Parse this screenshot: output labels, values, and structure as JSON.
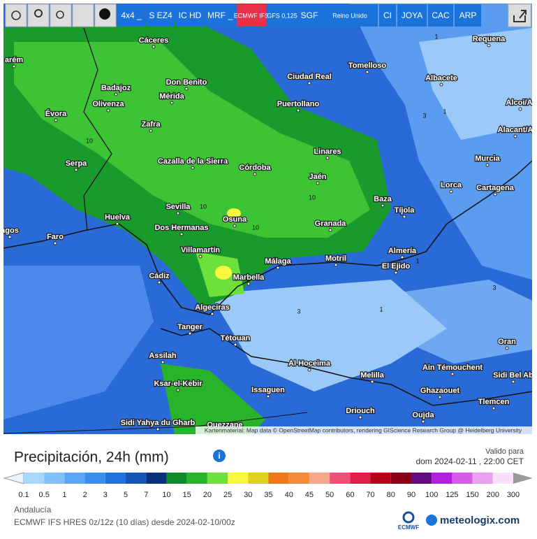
{
  "toolbar": {
    "buttons": [
      "4x4 _",
      "S EZ4",
      "IC HD",
      "MRF _",
      "ECMWF IFS",
      "GFS 0,125",
      "SGF",
      "Reino Unido",
      "CI",
      "JOYA",
      "CAC",
      "ARP"
    ],
    "active": "ECMWF IFS"
  },
  "map": {
    "cities": [
      "Cáceres",
      "arém",
      "Badajoz",
      "Don Benito",
      "Mérida",
      "Ciudad Real",
      "Tomelloso",
      "Requena",
      "Albacete",
      "Évora",
      "Olivenza",
      "Puertollano",
      "Zafra",
      "Alcoi/Al",
      "Alacant/A",
      "Linares",
      "Serpa",
      "Cazalla de la Sierra",
      "Córdoba",
      "Jaén",
      "Murcia",
      "Lorca",
      "Cartagena",
      "Baza",
      "Sevilla",
      "Osuna",
      "Tíjola",
      "Huelva",
      "Dos Hermanas",
      "Granada",
      "Faro",
      "agos",
      "Villamartín",
      "Almería",
      "Málaga",
      "Motril",
      "El Ejido",
      "Cádiz",
      "Marbella",
      "Algeciras",
      "Oran",
      "Tanger",
      "Tétouan",
      "Assilah",
      "Al Hoceima",
      "Ain Témouchent",
      "Melilla",
      "Sidi Bel Ab",
      "Ksar-el-Kebir",
      "Issaguen",
      "Ghazaouet",
      "Tlemcen",
      "Driouch",
      "Sidi Yahya du Gharb",
      "Oujda",
      "Ouezzane"
    ],
    "contour_labels": [
      "10",
      "10",
      "10",
      "10",
      "10",
      "3",
      "3",
      "1",
      "1",
      "1",
      "3",
      "1"
    ],
    "attribution": "Kartenmaterial: Map data © OpenStreetMap contributors, rendering GIScience Research Group @ Heidelberg University"
  },
  "legend": {
    "title": "Precipitación, 24h (mm)",
    "valid_label": "Valido para",
    "valid_time": "dom 2024-02-11 , 22:00 CET",
    "labels": [
      "0.1",
      "0.5",
      "1",
      "2",
      "3",
      "5",
      "7",
      "10",
      "15",
      "20",
      "25",
      "30",
      "35",
      "40",
      "45",
      "50",
      "60",
      "70",
      "80",
      "90",
      "100",
      "125",
      "150",
      "200",
      "300"
    ],
    "colors": [
      "#a8d6fc",
      "#80bff8",
      "#5aa6f4",
      "#3b8eee",
      "#1f74e0",
      "#1656b8",
      "#0a2f7c",
      "#0e8a28",
      "#28b42a",
      "#6ee03c",
      "#f8f840",
      "#e0d020",
      "#f07818",
      "#f28a3a",
      "#f8a88a",
      "#f05078",
      "#e01c48",
      "#b80018",
      "#8a0014",
      "#640a80",
      "#b41ee0",
      "#d85ae8",
      "#eaa0f0",
      "#f8e0f8",
      "#d0d0d0"
    ],
    "under_color": "#eaf4ff",
    "over_color": "#9a9a9a"
  },
  "footer": {
    "region": "Andalucía",
    "model": "ECMWF IFS HRES 0z/12z (10 días) desde 2024-02-10/00z",
    "ecmwf_logo": "ECMWF",
    "brand": "meteologix.com"
  }
}
